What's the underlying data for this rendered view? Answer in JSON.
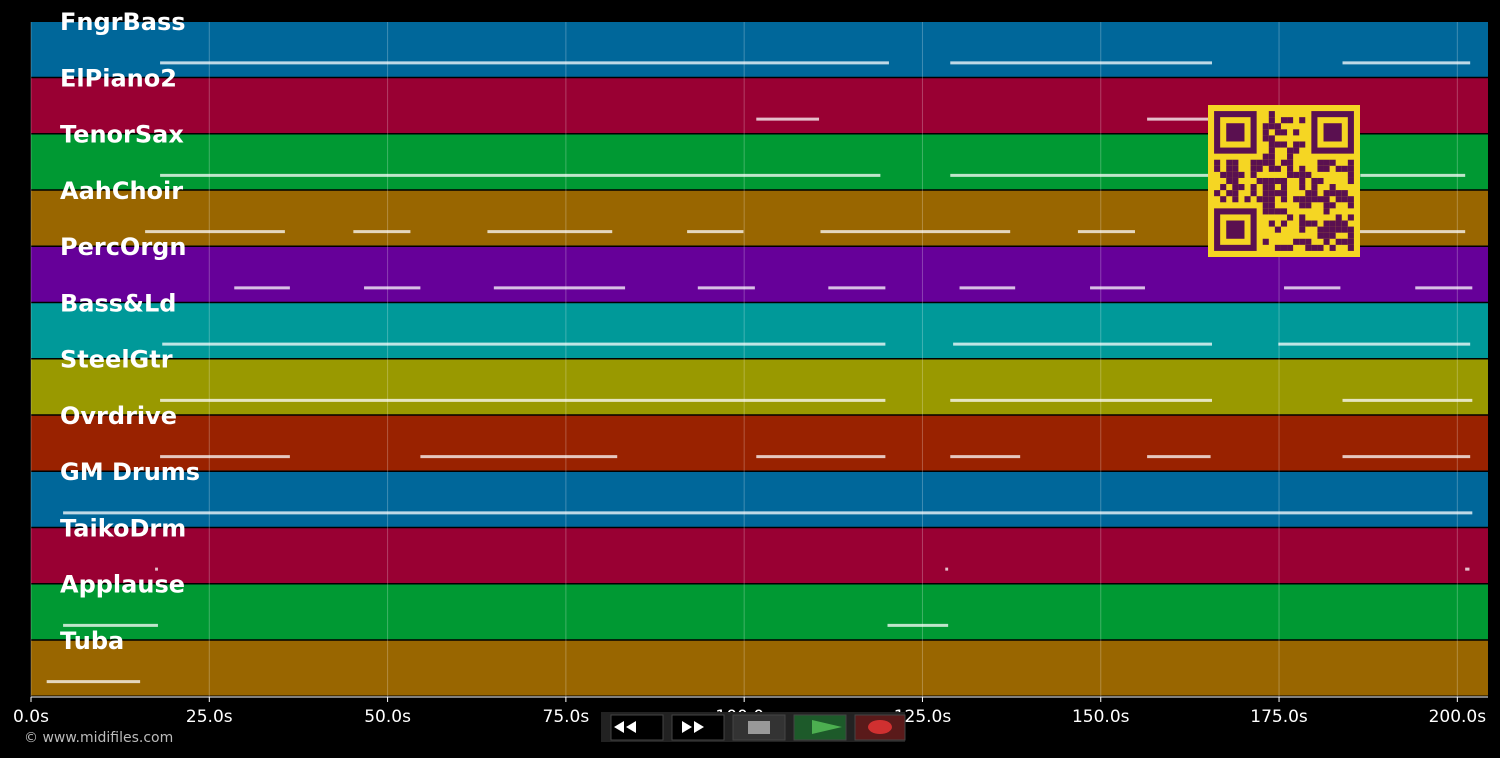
{
  "chart_data": {
    "type": "timeline",
    "xlim": [
      0,
      204.3
    ],
    "grid": true,
    "xticks": [
      {
        "value": 0,
        "label": "0.0s"
      },
      {
        "value": 25,
        "label": "25.0s"
      },
      {
        "value": 50,
        "label": "50.0s"
      },
      {
        "value": 75,
        "label": "75.0s"
      },
      {
        "value": 100,
        "label": "100.0s"
      },
      {
        "value": 125,
        "label": "125.0s"
      },
      {
        "value": 150,
        "label": "150.0s"
      },
      {
        "value": 175,
        "label": "175.0s"
      },
      {
        "value": 200,
        "label": "200.0s"
      }
    ],
    "tracks": [
      {
        "name": "FngrBass",
        "color": "#00679a",
        "segments": [
          [
            18.1,
            120.3
          ],
          [
            128.9,
            165.6
          ],
          [
            183.9,
            201.8
          ]
        ]
      },
      {
        "name": "ElPiano2",
        "color": "#990033",
        "segments": [
          [
            101.7,
            110.5
          ],
          [
            156.5,
            165.4
          ]
        ]
      },
      {
        "name": "TenorSax",
        "color": "#009933",
        "segments": [
          [
            18.1,
            119.1
          ],
          [
            128.9,
            165.4
          ],
          [
            186.4,
            201.1
          ]
        ]
      },
      {
        "name": "AahChoir",
        "color": "#996600",
        "segments": [
          [
            16.0,
            35.6
          ],
          [
            45.2,
            53.2
          ],
          [
            64.0,
            81.5
          ],
          [
            92.0,
            99.9
          ],
          [
            110.7,
            137.3
          ],
          [
            146.8,
            154.8
          ],
          [
            165.4,
            201.1
          ]
        ]
      },
      {
        "name": "PercOrgn",
        "color": "#660099",
        "segments": [
          [
            28.5,
            36.3
          ],
          [
            46.7,
            54.6
          ],
          [
            64.9,
            83.3
          ],
          [
            93.5,
            101.5
          ],
          [
            111.8,
            119.8
          ],
          [
            130.2,
            138.0
          ],
          [
            148.5,
            156.2
          ],
          [
            175.7,
            183.6
          ],
          [
            194.1,
            202.1
          ]
        ]
      },
      {
        "name": "Bass&Ld",
        "color": "#009999",
        "segments": [
          [
            18.4,
            119.8
          ],
          [
            129.3,
            165.6
          ],
          [
            174.9,
            201.8
          ]
        ]
      },
      {
        "name": "SteelGtr",
        "color": "#999900",
        "segments": [
          [
            18.1,
            119.8
          ],
          [
            128.9,
            165.6
          ],
          [
            183.9,
            202.1
          ]
        ]
      },
      {
        "name": "Ovrdrive",
        "color": "#992200",
        "segments": [
          [
            18.1,
            36.3
          ],
          [
            54.6,
            82.2
          ],
          [
            101.7,
            119.8
          ],
          [
            128.9,
            138.7
          ],
          [
            156.5,
            165.4
          ],
          [
            183.9,
            201.8
          ]
        ]
      },
      {
        "name": "GM Drums",
        "color": "#00679a",
        "segments": [
          [
            4.5,
            202.1
          ]
        ]
      },
      {
        "name": "TaikoDrm",
        "color": "#990033",
        "segments": [
          [
            17.4,
            17.8
          ],
          [
            128.2,
            128.6
          ],
          [
            201.1,
            201.7
          ]
        ]
      },
      {
        "name": "Applause",
        "color": "#009933",
        "segments": [
          [
            4.5,
            17.8
          ],
          [
            120.1,
            128.6
          ]
        ]
      },
      {
        "name": "Tuba",
        "color": "#996600",
        "segments": [
          [
            2.2,
            15.3
          ]
        ]
      }
    ]
  },
  "footer": {
    "credit": "© www.midifiles.com"
  }
}
